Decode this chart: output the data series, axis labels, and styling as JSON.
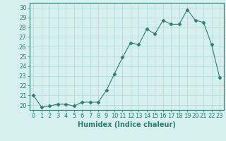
{
  "x": [
    0,
    1,
    2,
    3,
    4,
    5,
    6,
    7,
    8,
    9,
    10,
    11,
    12,
    13,
    14,
    15,
    16,
    17,
    18,
    19,
    20,
    21,
    22,
    23
  ],
  "y": [
    21.0,
    19.8,
    19.9,
    20.1,
    20.1,
    19.9,
    20.3,
    20.3,
    20.3,
    21.5,
    23.2,
    24.9,
    26.4,
    26.2,
    27.8,
    27.3,
    28.7,
    28.3,
    28.3,
    29.8,
    28.7,
    28.5,
    26.2,
    22.8
  ],
  "line_color": "#2e7d6e",
  "marker": "D",
  "marker_size": 2.5,
  "background_color": "#d6f0ee",
  "grid_color": "#b0d8d4",
  "xlabel": "Humidex (Indice chaleur)",
  "ylim": [
    19.5,
    30.5
  ],
  "xlim": [
    -0.5,
    23.5
  ],
  "yticks": [
    20,
    21,
    22,
    23,
    24,
    25,
    26,
    27,
    28,
    29,
    30
  ],
  "xticks": [
    0,
    1,
    2,
    3,
    4,
    5,
    6,
    7,
    8,
    9,
    10,
    11,
    12,
    13,
    14,
    15,
    16,
    17,
    18,
    19,
    20,
    21,
    22,
    23
  ],
  "tick_color": "#2e7d6e",
  "label_color": "#2e7d6e",
  "axis_color": "#2e7d6e",
  "font_size": 6,
  "xlabel_fontsize": 7
}
